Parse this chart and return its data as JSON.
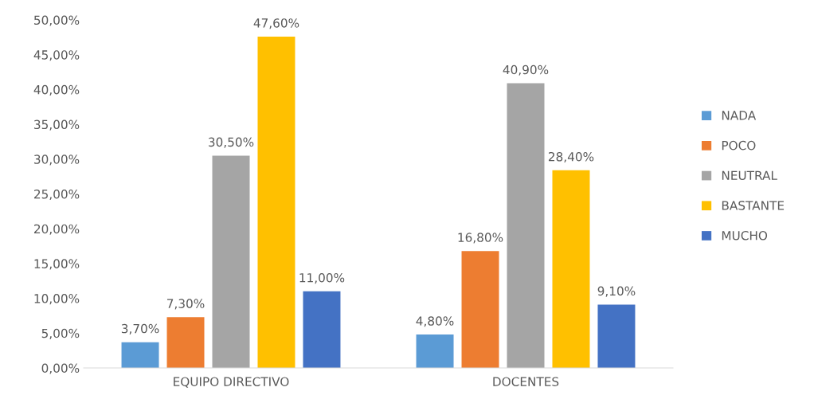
{
  "chart_data": {
    "type": "bar",
    "categories": [
      "EQUIPO DIRECTIVO",
      "DOCENTES"
    ],
    "series": [
      {
        "name": "NADA",
        "color": "#5b9bd5",
        "values": [
          3.7,
          4.8
        ],
        "value_labels": [
          "3,70%",
          "4,80%"
        ]
      },
      {
        "name": "POCO",
        "color": "#ed7d31",
        "values": [
          7.3,
          16.8
        ],
        "value_labels": [
          "7,30%",
          "16,80%"
        ]
      },
      {
        "name": "NEUTRAL",
        "color": "#a5a5a5",
        "values": [
          30.5,
          40.9
        ],
        "value_labels": [
          "30,50%",
          "40,90%"
        ]
      },
      {
        "name": "BASTANTE",
        "color": "#ffc000",
        "values": [
          47.6,
          28.4
        ],
        "value_labels": [
          "47,60%",
          "28,40%"
        ]
      },
      {
        "name": "MUCHO",
        "color": "#4472c4",
        "values": [
          11.0,
          9.1
        ],
        "value_labels": [
          "11,00%",
          "9,10%"
        ]
      }
    ],
    "ylim": [
      0,
      50
    ],
    "yticks": [
      {
        "value": 0,
        "label": "0,00%"
      },
      {
        "value": 5,
        "label": "5,00%"
      },
      {
        "value": 10,
        "label": "10,00%"
      },
      {
        "value": 15,
        "label": "15,00%"
      },
      {
        "value": 20,
        "label": "20,00%"
      },
      {
        "value": 25,
        "label": "25,00%"
      },
      {
        "value": 30,
        "label": "30,00%"
      },
      {
        "value": 35,
        "label": "35,00%"
      },
      {
        "value": 40,
        "label": "40,00%"
      },
      {
        "value": 45,
        "label": "45,00%"
      },
      {
        "value": 50,
        "label": "50,00%"
      }
    ],
    "grid": false,
    "legend": "right"
  }
}
